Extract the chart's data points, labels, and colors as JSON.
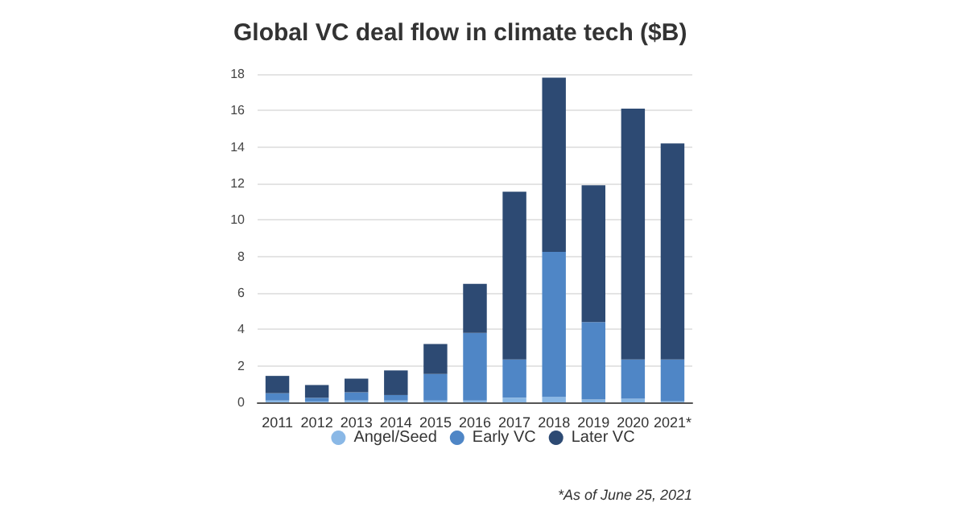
{
  "chart_data": {
    "type": "bar",
    "title": "Global VC deal flow in climate tech ($B)",
    "categories": [
      "2011",
      "2012",
      "2013",
      "2014",
      "2015",
      "2016",
      "2017",
      "2018",
      "2019",
      "2020",
      "2021*"
    ],
    "stacked": true,
    "series": [
      {
        "name": "Angel/Seed",
        "color": "#8ab8e6",
        "values": [
          0.1,
          0.05,
          0.1,
          0.1,
          0.1,
          0.1,
          0.25,
          0.3,
          0.15,
          0.2,
          0.05
        ]
      },
      {
        "name": "Early VC",
        "color": "#4f86c6",
        "values": [
          0.4,
          0.2,
          0.45,
          0.3,
          1.45,
          3.7,
          2.1,
          7.95,
          4.25,
          2.15,
          2.3
        ]
      },
      {
        "name": "Later VC",
        "color": "#2d4a73",
        "values": [
          0.95,
          0.7,
          0.75,
          1.35,
          1.65,
          2.7,
          9.2,
          9.55,
          7.5,
          13.75,
          11.85
        ]
      }
    ],
    "ylim": [
      0,
      18
    ],
    "yticks": [
      0,
      2,
      4,
      6,
      8,
      10,
      12,
      14,
      16,
      18
    ],
    "grid": "y",
    "legend": "bottom",
    "annotations": [
      "*As of June 25, 2021"
    ]
  }
}
